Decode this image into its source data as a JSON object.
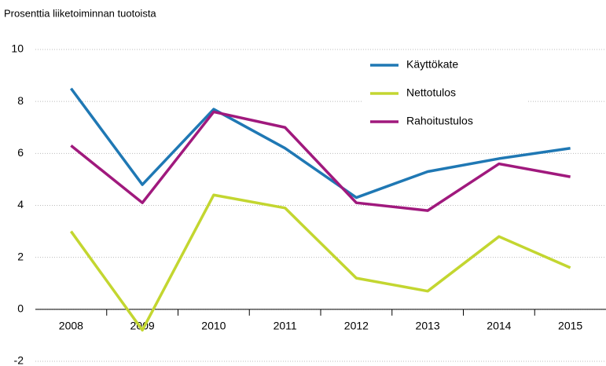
{
  "chart_data": {
    "type": "line",
    "title": "Prosenttia liiketoiminnan tuotoista",
    "categories": [
      "2008",
      "2009",
      "2010",
      "2011",
      "2012",
      "2013",
      "2014",
      "2015"
    ],
    "series": [
      {
        "name": "Käyttökate",
        "color": "#1f78b4",
        "values": [
          8.5,
          4.8,
          7.7,
          6.2,
          4.3,
          5.3,
          5.8,
          6.2
        ]
      },
      {
        "name": "Nettotulos",
        "color": "#c3d630",
        "values": [
          3.0,
          -0.8,
          4.4,
          3.9,
          1.2,
          0.7,
          2.8,
          1.6
        ]
      },
      {
        "name": "Rahoitustulos",
        "color": "#a0197d",
        "values": [
          6.3,
          4.1,
          7.6,
          7.0,
          4.1,
          3.8,
          5.6,
          5.1
        ]
      }
    ],
    "ylim": [
      -2,
      10
    ],
    "yticks": [
      -2,
      0,
      2,
      4,
      6,
      8,
      10
    ],
    "grid": true,
    "legend": "upper right"
  }
}
